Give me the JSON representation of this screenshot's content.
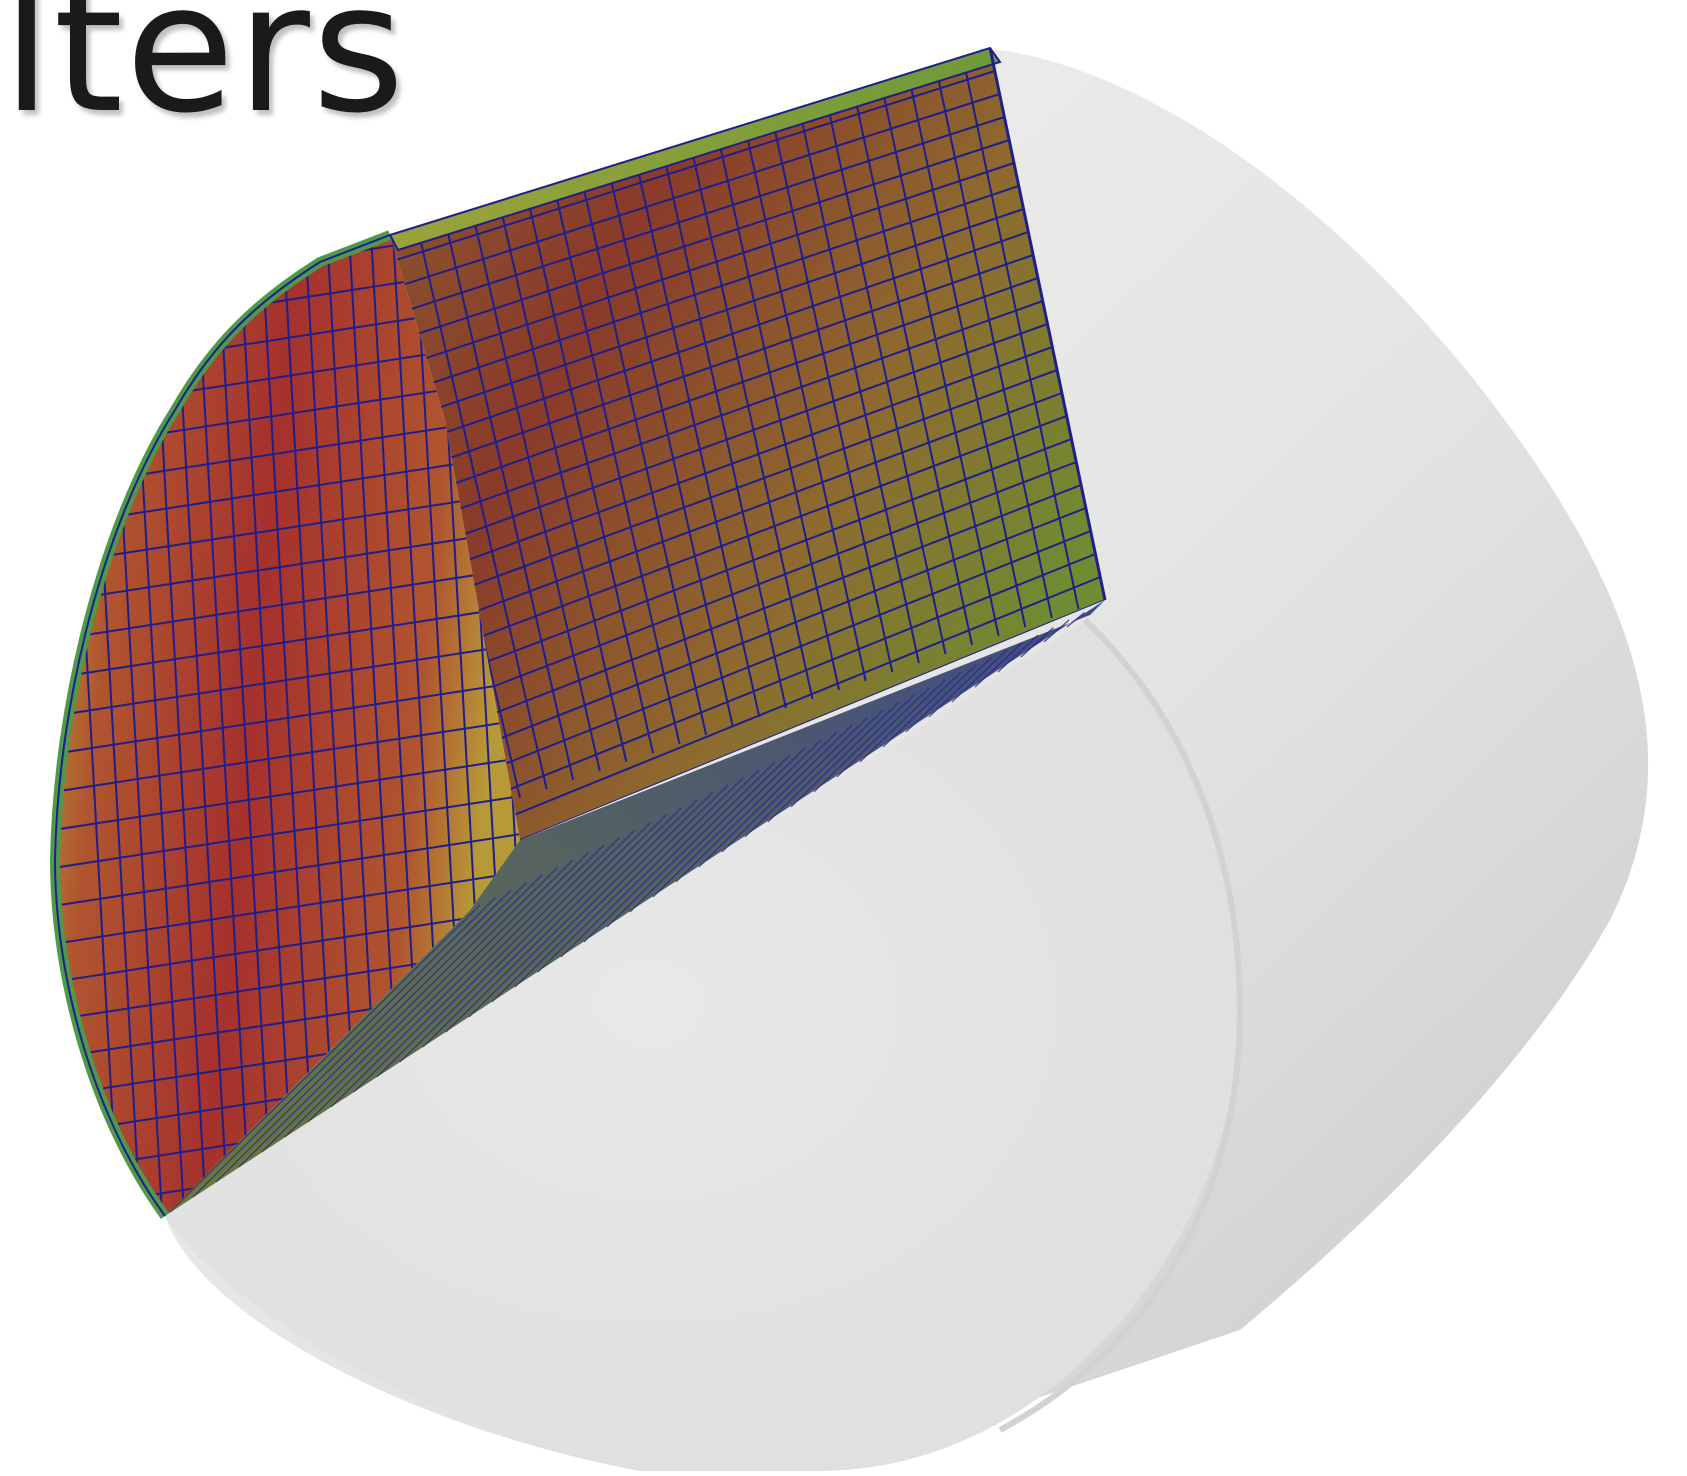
{
  "slide": {
    "title_fragment": "lters"
  },
  "render": {
    "cylinder_color": "#e6e6e6",
    "cylinder_shade": "#cdcdcd",
    "mesh_line_color": "#1f1f8c",
    "scalar_colors": {
      "low": "#5e8f3a",
      "mid": "#b39a3a",
      "high": "#a6302c"
    }
  }
}
